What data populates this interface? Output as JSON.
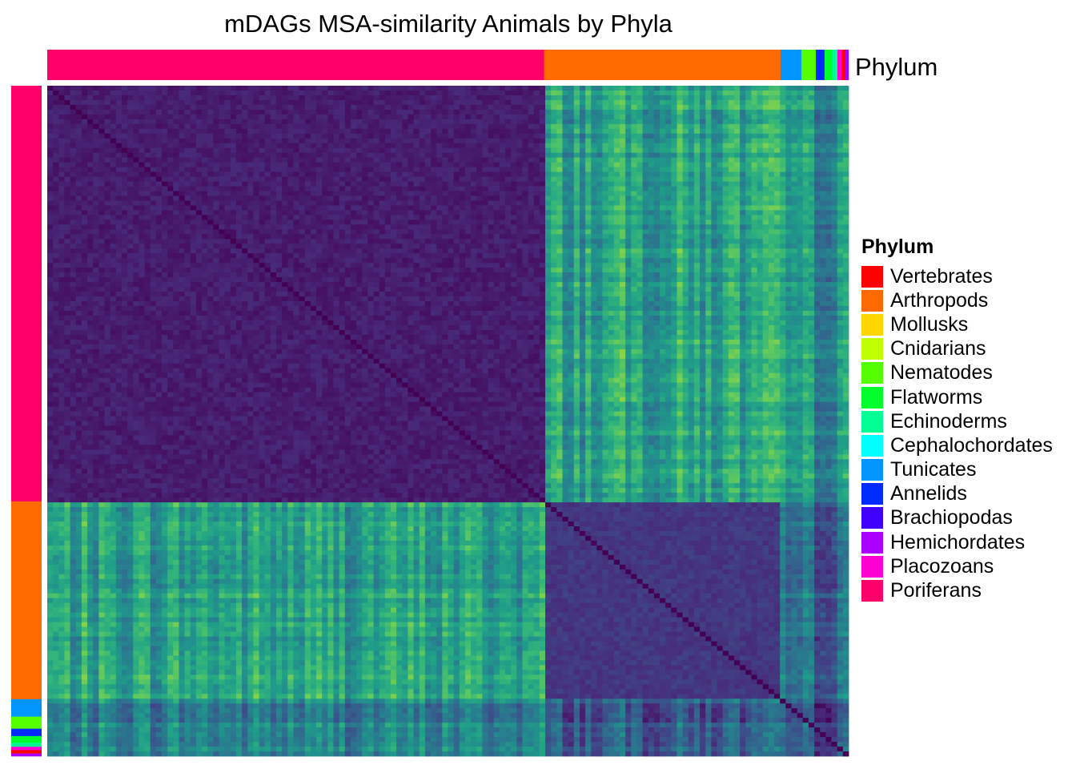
{
  "chart_data": {
    "type": "heatmap",
    "title": "mDAGs MSA-similarity  Animals by Phyla",
    "annotation_label": "Phylum",
    "legend": {
      "title": "Phylum",
      "placement": "right",
      "items": [
        {
          "label": "Vertebrates",
          "color": "#ff0000"
        },
        {
          "label": "Arthropods",
          "color": "#ff6a00"
        },
        {
          "label": "Mollusks",
          "color": "#ffd500"
        },
        {
          "label": "Cnidarians",
          "color": "#bfff00"
        },
        {
          "label": "Nematodes",
          "color": "#55ff00"
        },
        {
          "label": "Flatworms",
          "color": "#00ff2b"
        },
        {
          "label": "Echinoderms",
          "color": "#00ff95"
        },
        {
          "label": "Cephalochordates",
          "color": "#00ffff"
        },
        {
          "label": "Tunicates",
          "color": "#0095ff"
        },
        {
          "label": "Annelids",
          "color": "#002bff"
        },
        {
          "label": "Brachiopodas",
          "color": "#4000ff"
        },
        {
          "label": "Hemichordates",
          "color": "#aa00ff"
        },
        {
          "label": "Placozoans",
          "color": "#ff00d4"
        },
        {
          "label": "Poriferans",
          "color": "#ff006a"
        }
      ]
    },
    "phylum_order": [
      "Poriferans",
      "Arthropods",
      "Tunicates",
      "Nematodes",
      "Annelids",
      "Flatworms",
      "Echinoderms",
      "Placozoans",
      "Vertebrates",
      "Hemichordates"
    ],
    "phylum_fraction": [
      0.62,
      0.295,
      0.026,
      0.018,
      0.011,
      0.01,
      0.006,
      0.005,
      0.005,
      0.004
    ],
    "color_scale": "viridis",
    "value_range": [
      0,
      1
    ],
    "blocks": [
      {
        "row": "Poriferans",
        "col": "Poriferans",
        "value": 0.04
      },
      {
        "row": "Poriferans",
        "col": "Arthropods",
        "value": 0.58
      },
      {
        "row": "Poriferans",
        "col": "Other",
        "value": 0.5
      },
      {
        "row": "Arthropods",
        "col": "Poriferans",
        "value": 0.58
      },
      {
        "row": "Arthropods",
        "col": "Arthropods",
        "value": 0.12
      },
      {
        "row": "Arthropods",
        "col": "Other",
        "value": 0.33
      },
      {
        "row": "Other",
        "col": "Poriferans",
        "value": 0.45
      },
      {
        "row": "Other",
        "col": "Arthropods",
        "value": 0.3
      },
      {
        "row": "Other",
        "col": "Other",
        "value": 0.25
      }
    ],
    "grid": false
  }
}
